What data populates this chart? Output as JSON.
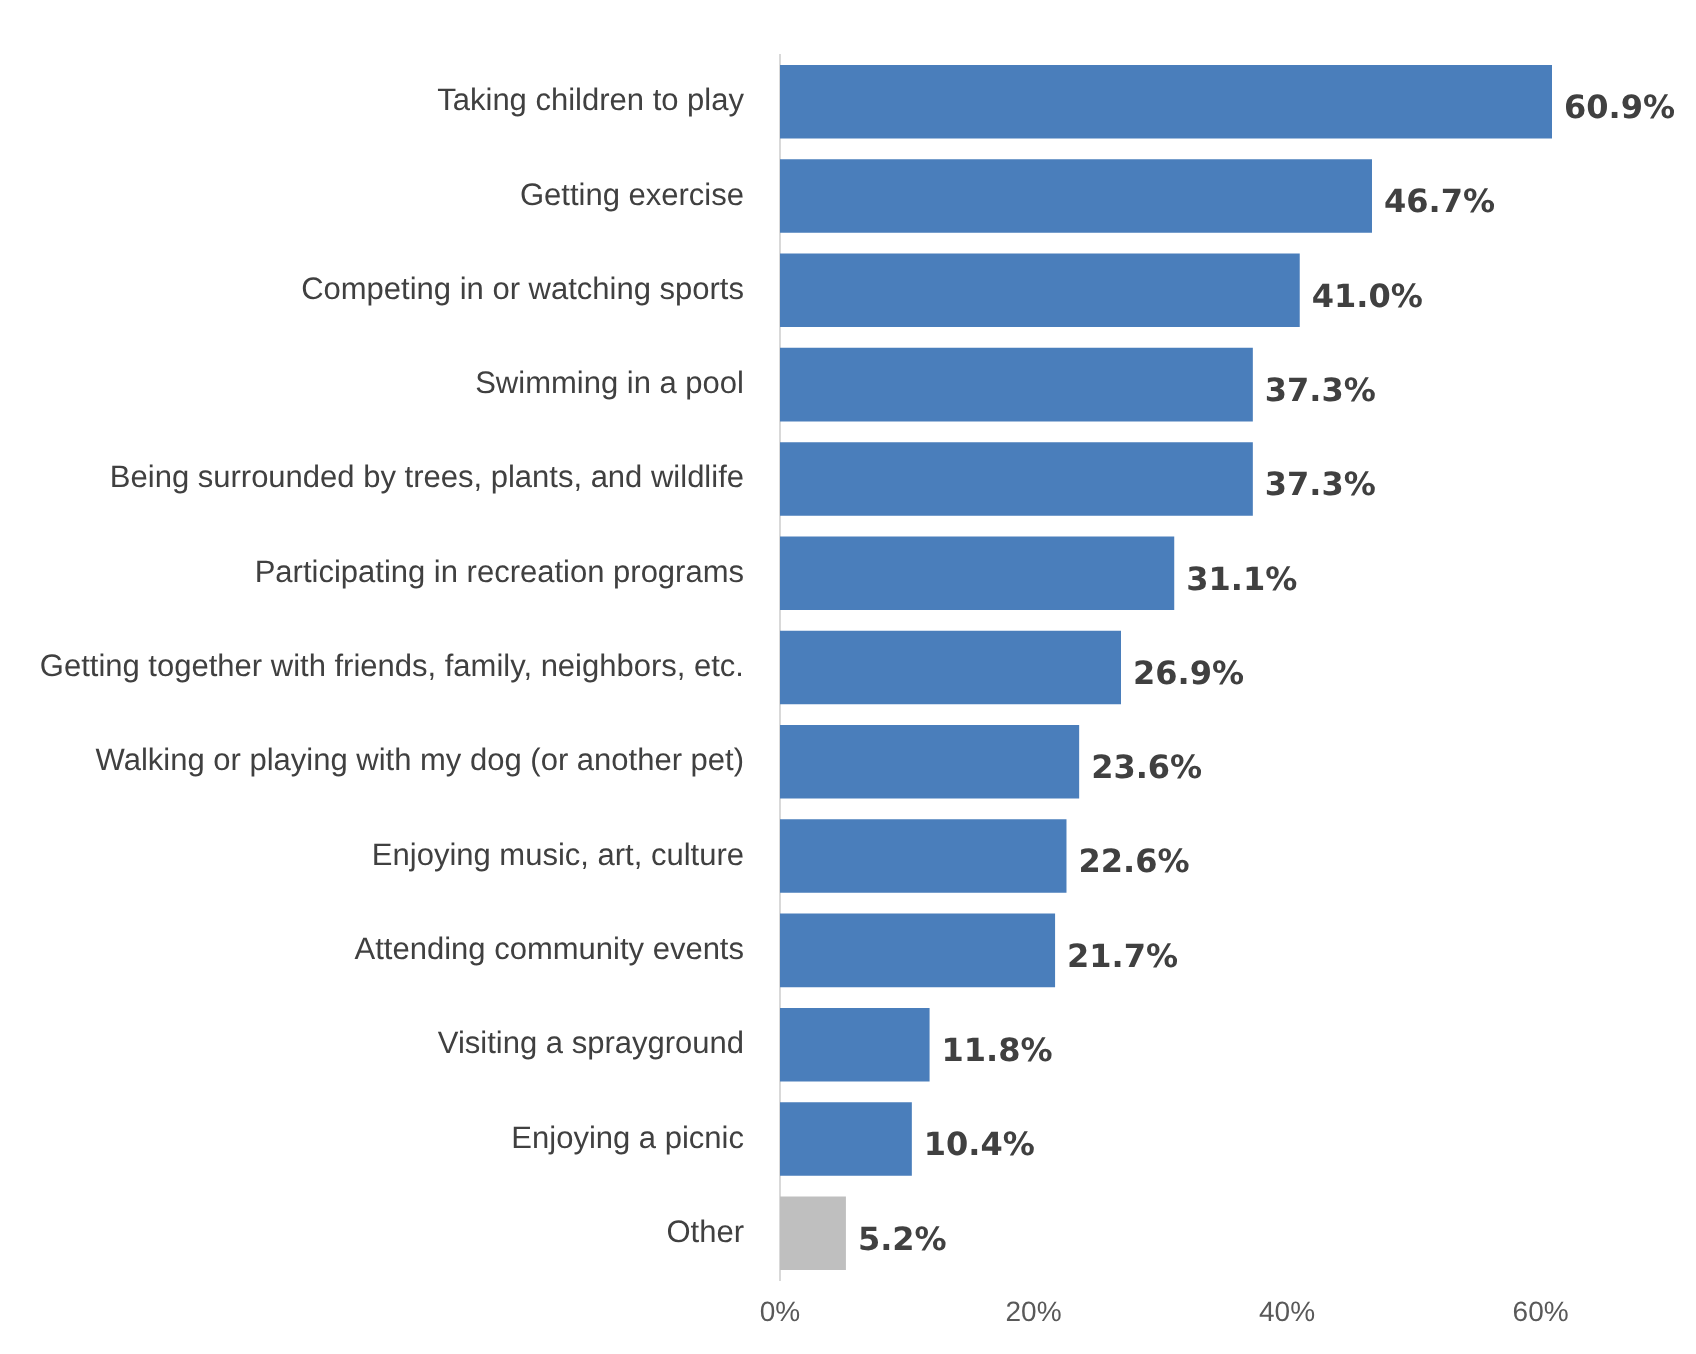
{
  "chart_data": {
    "type": "bar",
    "orientation": "horizontal",
    "categories": [
      "Taking children to play",
      "Getting exercise",
      "Competing in or watching sports",
      "Swimming in a pool",
      "Being surrounded by trees, plants, and wildlife",
      "Participating in recreation programs",
      "Getting together with friends, family, neighbors, etc.",
      "Walking or playing with my dog (or another pet)",
      "Enjoying music, art, culture",
      "Attending community events",
      "Visiting a sprayground",
      "Enjoying a picnic",
      "Other"
    ],
    "values": [
      60.9,
      46.7,
      41.0,
      37.3,
      37.3,
      31.1,
      26.9,
      23.6,
      22.6,
      21.7,
      11.8,
      10.4,
      5.2
    ],
    "colors": [
      "#4a7ebb",
      "#4a7ebb",
      "#4a7ebb",
      "#4a7ebb",
      "#4a7ebb",
      "#4a7ebb",
      "#4a7ebb",
      "#4a7ebb",
      "#4a7ebb",
      "#4a7ebb",
      "#4a7ebb",
      "#4a7ebb",
      "#bfbfbf"
    ],
    "value_labels": [
      "60.9%",
      "46.7%",
      "41.0%",
      "37.3%",
      "37.3%",
      "31.1%",
      "26.9%",
      "23.6%",
      "22.6%",
      "21.7%",
      "11.8%",
      "10.4%",
      "5.2%"
    ],
    "xlim": [
      0,
      60.9
    ],
    "xticks": [
      {
        "value": 0,
        "label": "0%"
      },
      {
        "value": 20,
        "label": "20%"
      },
      {
        "value": 40,
        "label": "40%"
      },
      {
        "value": 60,
        "label": "60%"
      }
    ],
    "grid": false,
    "legend": false
  }
}
